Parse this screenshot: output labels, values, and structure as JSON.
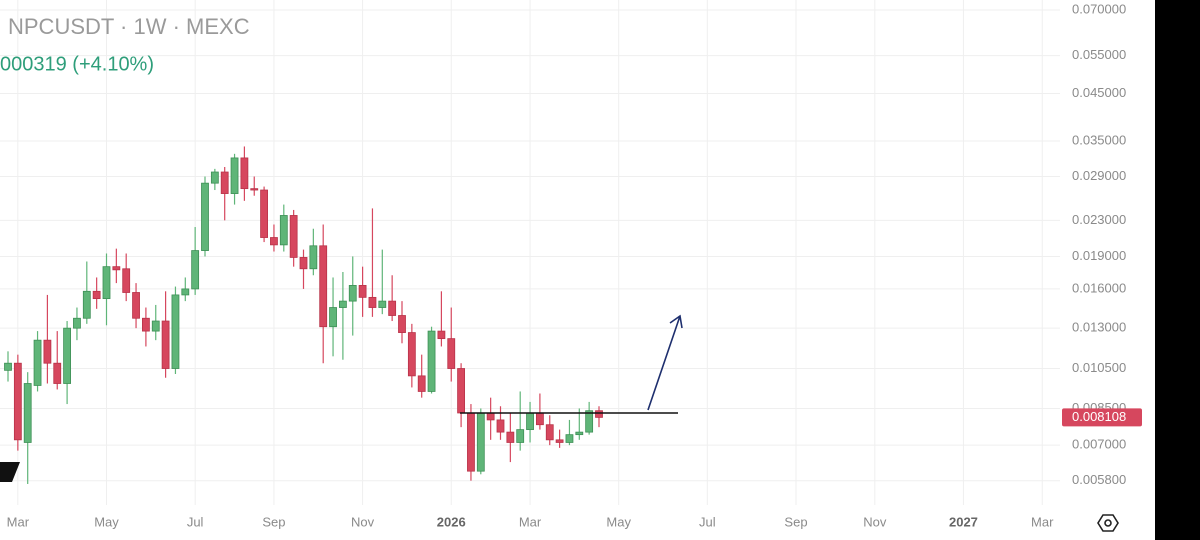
{
  "chart_data": {
    "type": "candlestick",
    "title": "NPCUSDT · 1W · MEXC",
    "subtitle": "000319 (+4.10%)",
    "log_scale": true,
    "grid": true,
    "up_color": "#5fb578",
    "down_color": "#d6475e",
    "ylim": [
      0.0051,
      0.0738
    ],
    "yticks": [
      {
        "value": 0.0058,
        "label": "0.005800"
      },
      {
        "value": 0.007,
        "label": "0.007000"
      },
      {
        "value": 0.0085,
        "label": "0.008500"
      },
      {
        "value": 0.0105,
        "label": "0.010500"
      },
      {
        "value": 0.013,
        "label": "0.013000"
      },
      {
        "value": 0.016,
        "label": "0.016000"
      },
      {
        "value": 0.019,
        "label": "0.019000"
      },
      {
        "value": 0.023,
        "label": "0.023000"
      },
      {
        "value": 0.029,
        "label": "0.029000"
      },
      {
        "value": 0.035,
        "label": "0.035000"
      },
      {
        "value": 0.045,
        "label": "0.045000"
      },
      {
        "value": 0.055,
        "label": "0.055000"
      },
      {
        "value": 0.07,
        "label": "0.070000"
      }
    ],
    "last_price": {
      "value": 0.008108,
      "label": "0.008108"
    },
    "categories": [
      null,
      "Mar",
      null,
      null,
      null,
      null,
      null,
      null,
      null,
      null,
      "May",
      null,
      null,
      null,
      null,
      null,
      null,
      null,
      null,
      "Jul",
      null,
      null,
      null,
      null,
      null,
      null,
      null,
      "Sep",
      null,
      null,
      null,
      null,
      null,
      null,
      null,
      null,
      "Nov",
      null,
      null,
      null,
      null,
      null,
      null,
      null,
      null,
      "2026",
      null,
      null,
      null,
      null,
      null,
      null,
      null,
      "Mar",
      null,
      null,
      null,
      null,
      null,
      null,
      null,
      null,
      "May",
      null,
      null,
      null,
      null,
      null,
      null,
      null,
      null,
      "Jul",
      null,
      null,
      null,
      null,
      null,
      null,
      null,
      null,
      "Sep",
      null,
      null,
      null,
      null,
      null,
      null,
      null,
      "Nov",
      null,
      null,
      null,
      null,
      null,
      null,
      null,
      null,
      "2027",
      null,
      null,
      null,
      null,
      null,
      null,
      null,
      "Mar"
    ],
    "open": [
      0.0104,
      0.0108,
      0.0071,
      0.0096,
      0.0122,
      0.0108,
      0.0097,
      0.013,
      0.0137,
      0.0158,
      0.0152,
      0.018,
      0.0178,
      0.0157,
      0.0137,
      0.0128,
      0.0135,
      0.0105,
      0.0155,
      0.016,
      0.0196,
      0.028,
      0.0297,
      0.0265,
      0.032,
      0.0272,
      0.027,
      0.021,
      0.0202,
      0.0236,
      0.0189,
      0.0178,
      0.0201,
      0.0131,
      0.0145,
      0.015,
      0.0163,
      0.0153,
      0.0145,
      0.015,
      0.0139,
      0.0127,
      0.0101,
      0.0093,
      0.0128,
      0.0123,
      0.0105,
      0.0083,
      0.0061,
      0.0083,
      0.008,
      0.0075,
      0.0071,
      0.0076,
      0.0083,
      0.0078,
      0.0072,
      0.0071,
      0.0074,
      0.0075,
      0.0084,
      null,
      null,
      null,
      null,
      null,
      null,
      null,
      null,
      null,
      null,
      null,
      null,
      null,
      null,
      null,
      null,
      null,
      null,
      null,
      null,
      null,
      null,
      null,
      null,
      null,
      null,
      null,
      null,
      null,
      null,
      null,
      null,
      null,
      null,
      null,
      null,
      null,
      null,
      null,
      null,
      null,
      null,
      null,
      null,
      null
    ],
    "high": [
      0.0115,
      0.0113,
      0.0103,
      0.0128,
      0.0155,
      0.0128,
      0.0135,
      0.0145,
      0.0185,
      0.017,
      0.0193,
      0.0198,
      0.0193,
      0.0165,
      0.0145,
      0.0147,
      0.0158,
      0.0162,
      0.017,
      0.0222,
      0.029,
      0.0302,
      0.0305,
      0.0327,
      0.034,
      0.029,
      0.0275,
      0.0225,
      0.025,
      0.0243,
      0.0197,
      0.022,
      0.0225,
      0.017,
      0.0175,
      0.019,
      0.018,
      0.0245,
      0.0197,
      0.0172,
      0.015,
      0.0133,
      0.0113,
      0.0131,
      0.0158,
      0.0145,
      0.0108,
      0.0087,
      0.0085,
      0.009,
      0.0086,
      0.0083,
      0.0093,
      0.0088,
      0.0092,
      0.0082,
      0.0076,
      0.008,
      0.0085,
      0.0088,
      0.0086,
      null,
      null,
      null,
      null,
      null,
      null,
      null,
      null,
      null,
      null,
      null,
      null,
      null,
      null,
      null,
      null,
      null,
      null,
      null,
      null,
      null,
      null,
      null,
      null,
      null,
      null,
      null,
      null,
      null,
      null,
      null,
      null,
      null,
      null,
      null,
      null,
      null,
      null,
      null,
      null,
      null,
      null,
      null,
      null,
      null
    ],
    "low": [
      0.0098,
      0.0068,
      0.0057,
      0.0093,
      0.0097,
      0.0094,
      0.0087,
      0.0122,
      0.0133,
      0.0144,
      0.0132,
      0.0165,
      0.015,
      0.013,
      0.0118,
      0.0122,
      0.01,
      0.0102,
      0.015,
      0.0155,
      0.019,
      0.027,
      0.023,
      0.025,
      0.0255,
      0.0262,
      0.0205,
      0.0195,
      0.0195,
      0.018,
      0.016,
      0.0172,
      0.0108,
      0.0112,
      0.011,
      0.0125,
      0.0138,
      0.0138,
      0.014,
      0.0135,
      0.012,
      0.0095,
      0.009,
      0.0092,
      0.0118,
      0.0098,
      0.0077,
      0.0058,
      0.006,
      0.0072,
      0.0072,
      0.0064,
      0.0068,
      0.0071,
      0.0076,
      0.007,
      0.0069,
      0.007,
      0.0072,
      0.0074,
      0.0077,
      null,
      null,
      null,
      null,
      null,
      null,
      null,
      null,
      null,
      null,
      null,
      null,
      null,
      null,
      null,
      null,
      null,
      null,
      null,
      null,
      null,
      null,
      null,
      null,
      null,
      null,
      null,
      null,
      null,
      null,
      null,
      null,
      null,
      null,
      null,
      null,
      null,
      null,
      null,
      null,
      null,
      null,
      null,
      null,
      null
    ],
    "close": [
      0.0108,
      0.0072,
      0.0097,
      0.0122,
      0.0108,
      0.0097,
      0.013,
      0.0137,
      0.0158,
      0.0152,
      0.018,
      0.0177,
      0.0157,
      0.0137,
      0.0128,
      0.0135,
      0.0105,
      0.0155,
      0.016,
      0.0196,
      0.028,
      0.0297,
      0.0265,
      0.032,
      0.0272,
      0.027,
      0.021,
      0.0202,
      0.0236,
      0.0189,
      0.0178,
      0.0201,
      0.0131,
      0.0145,
      0.015,
      0.0163,
      0.0153,
      0.0145,
      0.015,
      0.0139,
      0.0127,
      0.0101,
      0.0093,
      0.0128,
      0.0123,
      0.0105,
      0.0083,
      0.0061,
      0.0083,
      0.008,
      0.0075,
      0.0071,
      0.0076,
      0.0083,
      0.0078,
      0.0072,
      0.0071,
      0.0074,
      0.0075,
      0.0084,
      0.008108,
      null,
      null,
      null,
      null,
      null,
      null,
      null,
      null,
      null,
      null,
      null,
      null,
      null,
      null,
      null,
      null,
      null,
      null,
      null,
      null,
      null,
      null,
      null,
      null,
      null,
      null,
      null,
      null,
      null,
      null,
      null,
      null,
      null,
      null,
      null,
      null,
      null,
      null,
      null,
      null,
      null,
      null,
      null,
      null,
      null
    ]
  }
}
